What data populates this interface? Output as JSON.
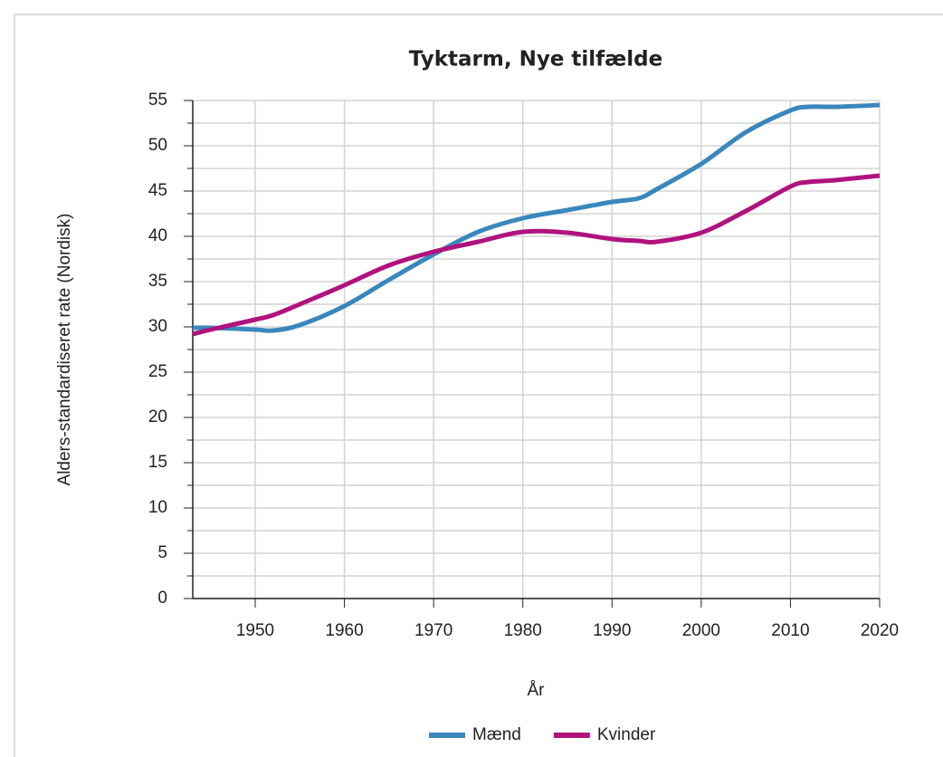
{
  "chart_data": {
    "type": "line",
    "title": "Tyktarm, Nye tilfælde",
    "xlabel": "År",
    "ylabel": "Alders-standardiseret rate (Nordisk)",
    "x": [
      1943,
      1945,
      1950,
      1952,
      1955,
      1960,
      1965,
      1970,
      1975,
      1980,
      1985,
      1990,
      1993,
      1995,
      2000,
      2005,
      2010,
      2012,
      2015,
      2020
    ],
    "series": [
      {
        "name": "Mænd",
        "color": "#3a87bd",
        "values": [
          29.9,
          29.9,
          29.7,
          29.6,
          30.2,
          32.3,
          35.2,
          38.0,
          40.5,
          42.0,
          42.9,
          43.8,
          44.2,
          45.2,
          48.0,
          51.5,
          53.9,
          54.3,
          54.3,
          54.5
        ]
      },
      {
        "name": "Kvinder",
        "color": "#b0127e",
        "values": [
          29.2,
          29.7,
          30.8,
          31.3,
          32.5,
          34.6,
          36.8,
          38.3,
          39.4,
          40.5,
          40.4,
          39.7,
          39.5,
          39.4,
          40.4,
          42.8,
          45.5,
          46.0,
          46.2,
          46.7
        ]
      }
    ],
    "xlim": [
      1943,
      2020
    ],
    "xticks": [
      1950,
      1960,
      1970,
      1980,
      1990,
      2000,
      2010,
      2020
    ],
    "ylim": [
      0,
      55
    ],
    "yticks": [
      0,
      5,
      10,
      15,
      20,
      25,
      30,
      35,
      40,
      45,
      50,
      55
    ],
    "yminorticks": [
      2.5,
      7.5,
      12.5,
      17.5,
      22.5,
      27.5,
      32.5,
      37.5,
      42.5,
      47.5,
      52.5
    ],
    "grid": true,
    "legend": "bottom"
  }
}
